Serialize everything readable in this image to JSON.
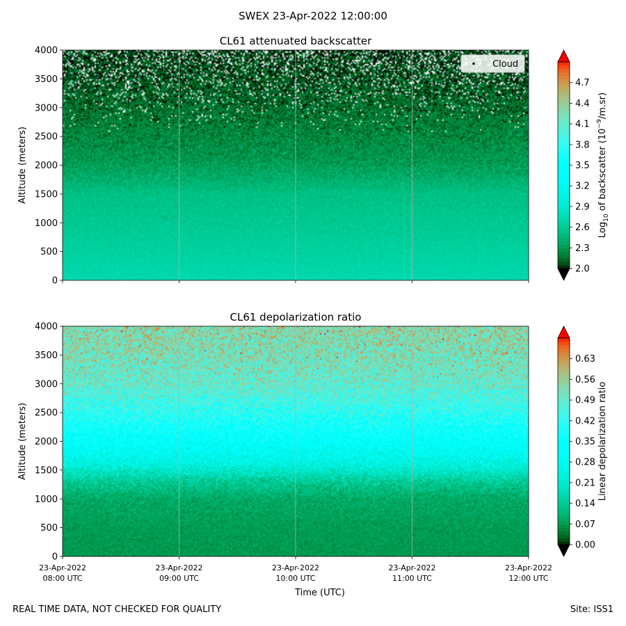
{
  "figure": {
    "suptitle": "SWEX 23-Apr-2022 12:00:00",
    "footer_left": "REAL TIME DATA, NOT CHECKED FOR QUALITY",
    "footer_right": "Site: ISS1"
  },
  "chart_data": [
    {
      "type": "heatmap",
      "title": "CL61 attenuated backscatter",
      "ylabel": "Altitude (meters)",
      "xlabel": "",
      "ylim": [
        0,
        4000
      ],
      "yticks": [
        0,
        500,
        1000,
        1500,
        2000,
        2500,
        3000,
        3500,
        4000
      ],
      "xlim": [
        "2022-04-23T08:00Z",
        "2022-04-23T12:00Z"
      ],
      "xticks": [
        "2022-04-23T08:00Z",
        "2022-04-23T09:00Z",
        "2022-04-23T10:00Z",
        "2022-04-23T11:00Z",
        "2022-04-23T12:00Z"
      ],
      "xtick_labels": [],
      "grid": true,
      "colormap": "rainbow",
      "colorbar": {
        "label_pre": "Log",
        "label_sub": "10",
        "label_mid": " of backscatter (10",
        "label_sup": "−9",
        "label_post": "/m.sr)",
        "range": [
          2.0,
          5.0
        ],
        "ticks": [
          "2.0",
          "2.3",
          "2.6",
          "2.9",
          "3.2",
          "3.5",
          "3.8",
          "4.1",
          "4.4",
          "4.7"
        ],
        "extend": "both"
      },
      "legend": {
        "entries": [
          "Cloud"
        ],
        "placement": "upper right"
      },
      "profile": {
        "altitude": [
          0,
          300,
          700,
          1000,
          1500,
          1800,
          2100,
          2500,
          3000,
          3500,
          4000
        ],
        "value": [
          2.72,
          2.68,
          2.62,
          2.58,
          2.52,
          2.4,
          2.3,
          2.24,
          2.16,
          2.1,
          2.06
        ],
        "noise": [
          0.05,
          0.06,
          0.06,
          0.07,
          0.08,
          0.12,
          0.14,
          0.16,
          0.18,
          0.2,
          0.22
        ]
      },
      "missing_fraction": {
        "altitude": [
          2500,
          3000,
          3500,
          4000
        ],
        "fraction": [
          0.0,
          0.04,
          0.12,
          0.2
        ]
      }
    },
    {
      "type": "heatmap",
      "title": "CL61 depolarization ratio",
      "ylabel": "Altitude (meters)",
      "xlabel": "Time (UTC)",
      "ylim": [
        0,
        4000
      ],
      "yticks": [
        0,
        500,
        1000,
        1500,
        2000,
        2500,
        3000,
        3500,
        4000
      ],
      "xlim": [
        "2022-04-23T08:00Z",
        "2022-04-23T12:00Z"
      ],
      "xticks": [
        "2022-04-23T08:00Z",
        "2022-04-23T09:00Z",
        "2022-04-23T10:00Z",
        "2022-04-23T11:00Z",
        "2022-04-23T12:00Z"
      ],
      "xtick_labels": [
        [
          "23-Apr-2022",
          "08:00 UTC"
        ],
        [
          "23-Apr-2022",
          "09:00 UTC"
        ],
        [
          "23-Apr-2022",
          "10:00 UTC"
        ],
        [
          "23-Apr-2022",
          "11:00 UTC"
        ],
        [
          "23-Apr-2022",
          "12:00 UTC"
        ]
      ],
      "grid": true,
      "colormap": "rainbow",
      "colorbar": {
        "label": "Linear depolarization ratio",
        "range": [
          0.0,
          0.7
        ],
        "ticks": [
          "0.00",
          "0.07",
          "0.14",
          "0.21",
          "0.28",
          "0.35",
          "0.42",
          "0.49",
          "0.56",
          "0.63"
        ],
        "extend": "both"
      },
      "profile": {
        "altitude": [
          0,
          500,
          1000,
          1300,
          1600,
          1900,
          2200,
          2600,
          3000,
          3500,
          4000
        ],
        "value": [
          0.07,
          0.075,
          0.09,
          0.14,
          0.24,
          0.3,
          0.36,
          0.43,
          0.49,
          0.52,
          0.54
        ],
        "noise": [
          0.02,
          0.02,
          0.03,
          0.05,
          0.06,
          0.07,
          0.08,
          0.1,
          0.11,
          0.12,
          0.12
        ]
      }
    }
  ]
}
